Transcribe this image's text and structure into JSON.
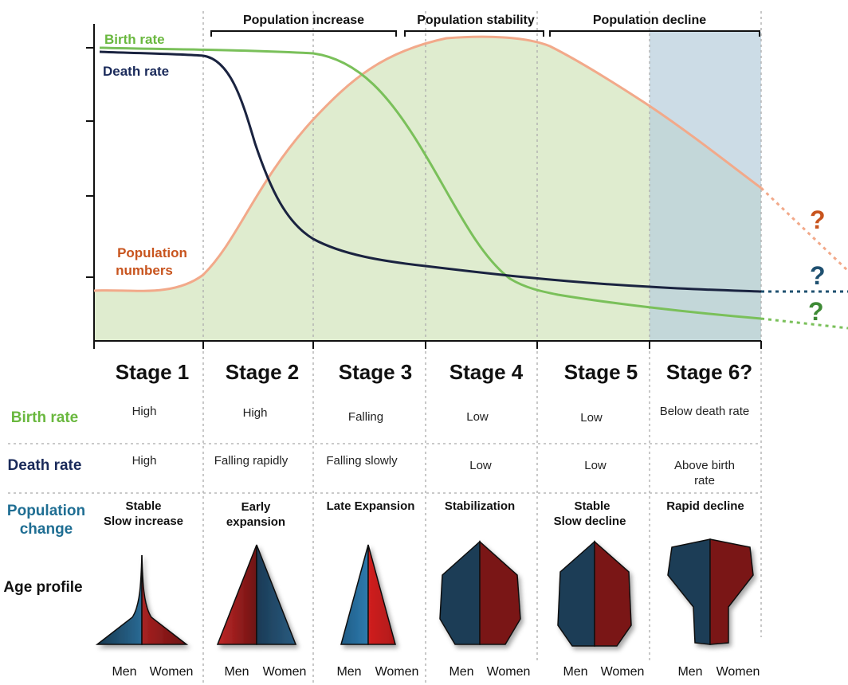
{
  "colors": {
    "birth": "#7ac05a",
    "death": "#1a2340",
    "population": "#f2a98a",
    "area_fill": "#dfeccf",
    "decline_shade": "#b9cfdc",
    "men": "#1e4a68",
    "women": "#8e1a1a",
    "row_birth": "#6ab83f",
    "row_death": "#1a2a5a",
    "row_pop": "#1f6e93",
    "q_pop": "#c8541e",
    "q_death": "#1f5070",
    "q_birth": "#3e8a35"
  },
  "curve_labels": {
    "birth": "Birth rate",
    "death": "Death  rate",
    "population_1": "Population",
    "population_2": "numbers"
  },
  "phases": [
    {
      "label": "Population increase"
    },
    {
      "label": "Population stability"
    },
    {
      "label": "Population decline"
    }
  ],
  "question_mark": "?",
  "stages": [
    {
      "name": "Stage 1",
      "birth": [
        "High"
      ],
      "death": [
        "High"
      ],
      "change": [
        "Stable",
        "Slow increase"
      ]
    },
    {
      "name": "Stage 2",
      "birth": [
        "High"
      ],
      "death": [
        "Falling rapidly"
      ],
      "change": [
        "Early",
        "expansion"
      ]
    },
    {
      "name": "Stage 3",
      "birth": [
        "Falling"
      ],
      "death": [
        "Falling slowly"
      ],
      "change": [
        "Late Expansion"
      ]
    },
    {
      "name": "Stage 4",
      "birth": [
        "Low"
      ],
      "death": [
        "Low"
      ],
      "change": [
        "Stabilization"
      ]
    },
    {
      "name": "Stage 5",
      "birth": [
        "Low"
      ],
      "death": [
        "Low"
      ],
      "change": [
        "Stable",
        "Slow decline"
      ]
    },
    {
      "name": "Stage 6?",
      "birth": [
        "Below death rate"
      ],
      "death": [
        "Above birth",
        "rate"
      ],
      "change": [
        "Rapid decline"
      ]
    }
  ],
  "row_labels": {
    "birth": "Birth rate",
    "death": "Death rate",
    "change_1": "Population",
    "change_2": "change",
    "age": "Age profile"
  },
  "sex_labels": {
    "men": "Men",
    "women": "Women"
  },
  "pyramids": [
    {
      "stage": "Stage 1",
      "shape": "stage-1"
    },
    {
      "stage": "Stage 2",
      "shape": "stage-2"
    },
    {
      "stage": "Stage 3",
      "shape": "stage-3"
    },
    {
      "stage": "Stage 4",
      "shape": "stage-4"
    },
    {
      "stage": "Stage 5",
      "shape": "stage-5"
    },
    {
      "stage": "Stage 6?",
      "shape": "stage-6"
    }
  ]
}
